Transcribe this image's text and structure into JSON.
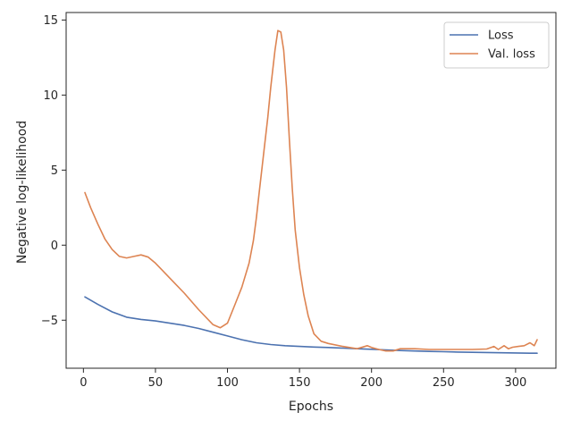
{
  "chart_data": {
    "type": "line",
    "title": "",
    "xlabel": "Epochs",
    "ylabel": "Negative log-likelihood",
    "xlim": [
      -12,
      328
    ],
    "ylim": [
      -8.2,
      15.5
    ],
    "xticks": [
      0,
      50,
      100,
      150,
      200,
      250,
      300
    ],
    "yticks": [
      -5,
      0,
      5,
      10,
      15
    ],
    "grid": false,
    "legend_position": "top-right",
    "series": [
      {
        "name": "Loss",
        "color": "#4c72b0",
        "x": [
          1,
          10,
          20,
          30,
          40,
          50,
          60,
          70,
          80,
          90,
          100,
          110,
          120,
          130,
          140,
          150,
          160,
          170,
          180,
          190,
          200,
          210,
          220,
          230,
          240,
          250,
          260,
          270,
          280,
          290,
          300,
          310,
          315
        ],
        "y": [
          -3.45,
          -3.95,
          -4.45,
          -4.8,
          -4.95,
          -5.05,
          -5.2,
          -5.35,
          -5.55,
          -5.8,
          -6.05,
          -6.3,
          -6.5,
          -6.62,
          -6.7,
          -6.75,
          -6.79,
          -6.82,
          -6.86,
          -6.9,
          -6.94,
          -6.98,
          -7.02,
          -7.05,
          -7.08,
          -7.1,
          -7.12,
          -7.14,
          -7.15,
          -7.17,
          -7.18,
          -7.2,
          -7.2
        ]
      },
      {
        "name": "Val. loss",
        "color": "#dd8452",
        "x": [
          1,
          5,
          10,
          15,
          20,
          25,
          30,
          35,
          40,
          45,
          50,
          55,
          60,
          70,
          80,
          90,
          95,
          100,
          105,
          110,
          115,
          118,
          120,
          122,
          125,
          128,
          130,
          133,
          135,
          137,
          139,
          141,
          143,
          145,
          147,
          150,
          153,
          156,
          160,
          165,
          170,
          180,
          190,
          197,
          200,
          205,
          210,
          215,
          220,
          230,
          240,
          250,
          260,
          270,
          280,
          285,
          288,
          292,
          295,
          298,
          302,
          306,
          310,
          313,
          315
        ],
        "y": [
          3.5,
          2.5,
          1.4,
          0.4,
          -0.3,
          -0.75,
          -0.85,
          -0.75,
          -0.65,
          -0.8,
          -1.2,
          -1.7,
          -2.2,
          -3.2,
          -4.3,
          -5.3,
          -5.5,
          -5.2,
          -4.0,
          -2.8,
          -1.2,
          0.3,
          1.8,
          3.5,
          6.0,
          8.5,
          10.5,
          13.0,
          14.3,
          14.2,
          13.0,
          10.5,
          7.0,
          3.8,
          1.0,
          -1.5,
          -3.3,
          -4.7,
          -5.9,
          -6.4,
          -6.55,
          -6.75,
          -6.9,
          -6.7,
          -6.82,
          -6.95,
          -7.05,
          -7.05,
          -6.9,
          -6.9,
          -6.95,
          -6.95,
          -6.95,
          -6.95,
          -6.92,
          -6.75,
          -6.95,
          -6.7,
          -6.9,
          -6.8,
          -6.75,
          -6.7,
          -6.5,
          -6.7,
          -6.3
        ]
      }
    ]
  }
}
